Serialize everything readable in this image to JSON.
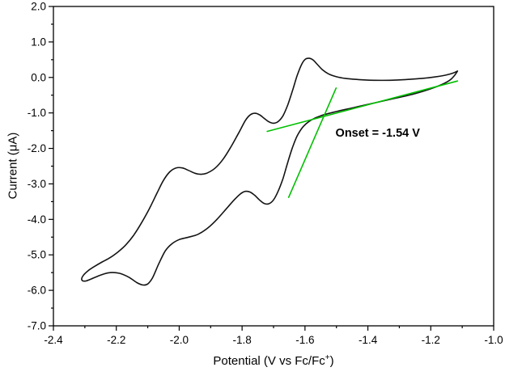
{
  "chart_data": {
    "type": "line",
    "title": "",
    "xlabel_main": "Potential (V vs Fc/Fc",
    "xlabel_sup": "+",
    "xlabel_end": ")",
    "ylabel": "Current (μA)",
    "xlim": [
      -2.4,
      -1.0
    ],
    "ylim": [
      -7.0,
      2.0
    ],
    "x_ticks": [
      -2.4,
      -2.2,
      -2.0,
      -1.8,
      -1.6,
      -1.4,
      -1.2,
      -1.0
    ],
    "x_tick_labels": [
      "-2.4",
      "-2.2",
      "-2.0",
      "-1.8",
      "-1.6",
      "-1.4",
      "-1.2",
      "-1.0"
    ],
    "y_ticks": [
      -7,
      -6,
      -5,
      -4,
      -3,
      -2,
      -1,
      0,
      1,
      2
    ],
    "y_tick_labels": [
      "-7.0",
      "-6.0",
      "-5.0",
      "-4.0",
      "-3.0",
      "-2.0",
      "-1.0",
      "0.0",
      "1.0",
      "2.0"
    ],
    "x_minor_step": 0.1,
    "y_minor_step": 0.5,
    "grid": false,
    "legend": "none",
    "colors": {
      "trace": "#141414",
      "tangent": "#00c000",
      "axis": "#000000"
    },
    "annotation": {
      "text": "Onset = -1.54 V",
      "x": -1.503,
      "y": -1.62
    },
    "series": [
      {
        "name": "cv-trace",
        "color_key": "trace",
        "width": 1.6,
        "points": [
          [
            -1.115,
            0.18
          ],
          [
            -1.125,
            0.05
          ],
          [
            -1.14,
            -0.08
          ],
          [
            -1.17,
            -0.22
          ],
          [
            -1.21,
            -0.35
          ],
          [
            -1.26,
            -0.48
          ],
          [
            -1.32,
            -0.6
          ],
          [
            -1.38,
            -0.72
          ],
          [
            -1.44,
            -0.84
          ],
          [
            -1.5,
            -0.96
          ],
          [
            -1.55,
            -1.08
          ],
          [
            -1.58,
            -1.2
          ],
          [
            -1.605,
            -1.38
          ],
          [
            -1.625,
            -1.65
          ],
          [
            -1.64,
            -1.98
          ],
          [
            -1.655,
            -2.4
          ],
          [
            -1.67,
            -2.85
          ],
          [
            -1.685,
            -3.2
          ],
          [
            -1.7,
            -3.45
          ],
          [
            -1.715,
            -3.56
          ],
          [
            -1.73,
            -3.55
          ],
          [
            -1.745,
            -3.45
          ],
          [
            -1.76,
            -3.32
          ],
          [
            -1.775,
            -3.23
          ],
          [
            -1.79,
            -3.21
          ],
          [
            -1.805,
            -3.28
          ],
          [
            -1.825,
            -3.45
          ],
          [
            -1.85,
            -3.7
          ],
          [
            -1.88,
            -4.0
          ],
          [
            -1.91,
            -4.25
          ],
          [
            -1.94,
            -4.42
          ],
          [
            -1.97,
            -4.5
          ],
          [
            -2.0,
            -4.57
          ],
          [
            -2.025,
            -4.7
          ],
          [
            -2.045,
            -4.9
          ],
          [
            -2.065,
            -5.25
          ],
          [
            -2.085,
            -5.65
          ],
          [
            -2.1,
            -5.82
          ],
          [
            -2.115,
            -5.85
          ],
          [
            -2.135,
            -5.78
          ],
          [
            -2.16,
            -5.63
          ],
          [
            -2.19,
            -5.52
          ],
          [
            -2.22,
            -5.5
          ],
          [
            -2.25,
            -5.57
          ],
          [
            -2.28,
            -5.68
          ],
          [
            -2.3,
            -5.74
          ],
          [
            -2.31,
            -5.7
          ],
          [
            -2.305,
            -5.58
          ],
          [
            -2.29,
            -5.45
          ],
          [
            -2.27,
            -5.33
          ],
          [
            -2.245,
            -5.2
          ],
          [
            -2.22,
            -5.08
          ],
          [
            -2.195,
            -4.92
          ],
          [
            -2.17,
            -4.72
          ],
          [
            -2.145,
            -4.45
          ],
          [
            -2.12,
            -4.1
          ],
          [
            -2.095,
            -3.7
          ],
          [
            -2.07,
            -3.25
          ],
          [
            -2.05,
            -2.9
          ],
          [
            -2.03,
            -2.66
          ],
          [
            -2.01,
            -2.55
          ],
          [
            -1.99,
            -2.55
          ],
          [
            -1.97,
            -2.62
          ],
          [
            -1.95,
            -2.7
          ],
          [
            -1.93,
            -2.73
          ],
          [
            -1.91,
            -2.69
          ],
          [
            -1.885,
            -2.55
          ],
          [
            -1.86,
            -2.3
          ],
          [
            -1.835,
            -1.95
          ],
          [
            -1.81,
            -1.55
          ],
          [
            -1.79,
            -1.22
          ],
          [
            -1.775,
            -1.06
          ],
          [
            -1.76,
            -1.01
          ],
          [
            -1.745,
            -1.05
          ],
          [
            -1.73,
            -1.15
          ],
          [
            -1.715,
            -1.25
          ],
          [
            -1.7,
            -1.29
          ],
          [
            -1.685,
            -1.24
          ],
          [
            -1.67,
            -1.08
          ],
          [
            -1.655,
            -0.78
          ],
          [
            -1.64,
            -0.38
          ],
          [
            -1.625,
            0.05
          ],
          [
            -1.61,
            0.38
          ],
          [
            -1.598,
            0.52
          ],
          [
            -1.586,
            0.54
          ],
          [
            -1.574,
            0.49
          ],
          [
            -1.56,
            0.36
          ],
          [
            -1.545,
            0.22
          ],
          [
            -1.525,
            0.1
          ],
          [
            -1.5,
            0.02
          ],
          [
            -1.47,
            -0.03
          ],
          [
            -1.43,
            -0.06
          ],
          [
            -1.38,
            -0.08
          ],
          [
            -1.33,
            -0.08
          ],
          [
            -1.28,
            -0.06
          ],
          [
            -1.23,
            -0.03
          ],
          [
            -1.19,
            0.01
          ],
          [
            -1.155,
            0.06
          ],
          [
            -1.13,
            0.12
          ],
          [
            -1.115,
            0.18
          ]
        ]
      },
      {
        "name": "baseline-tangent-line",
        "color_key": "tangent",
        "width": 1.6,
        "points": [
          [
            -1.72,
            -1.52
          ],
          [
            -1.115,
            -0.1
          ]
        ]
      },
      {
        "name": "onset-tangent-line",
        "color_key": "tangent",
        "width": 1.6,
        "points": [
          [
            -1.652,
            -3.38
          ],
          [
            -1.501,
            -0.3
          ]
        ]
      }
    ]
  }
}
